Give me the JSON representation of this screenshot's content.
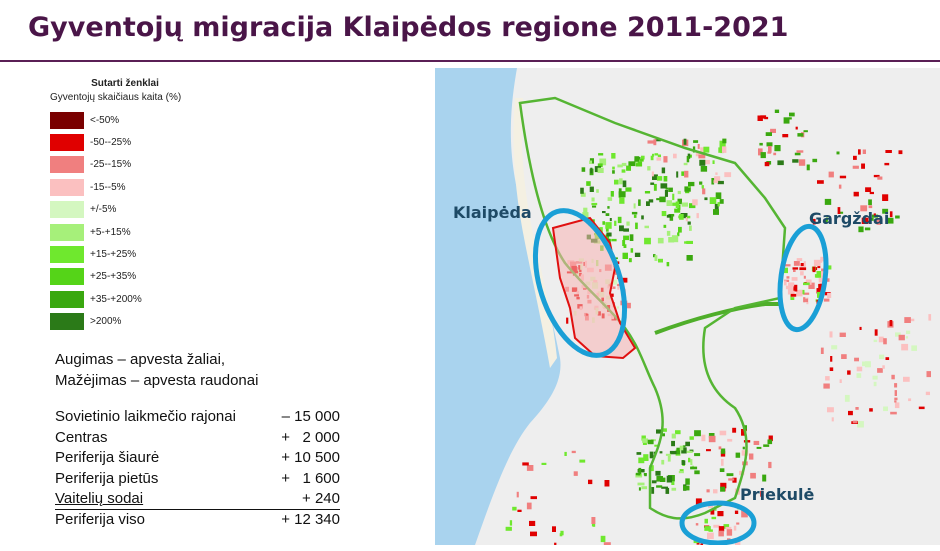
{
  "title": "Gyventojų migracija Klaipėdos regione 2011-2021",
  "legend": {
    "title": "Sutarti ženklai",
    "subtitle": "Gyventojų skaičiaus kaita (%)",
    "items": [
      {
        "label": "<-50%",
        "color": "#7a0000"
      },
      {
        "label": "-50--25%",
        "color": "#e00000"
      },
      {
        "label": "-25--15%",
        "color": "#f07f7f"
      },
      {
        "label": "-15--5%",
        "color": "#fbc0c0"
      },
      {
        "label": "+/-5%",
        "color": "#d4f7c0"
      },
      {
        "label": "+5-+15%",
        "color": "#a6f07a"
      },
      {
        "label": "+15-+25%",
        "color": "#6fe82e"
      },
      {
        "label": "+25-+35%",
        "color": "#55d418"
      },
      {
        "label": "+35-+200%",
        "color": "#3aa80f"
      },
      {
        "label": ">200%",
        "color": "#2b7a18"
      }
    ]
  },
  "note": {
    "line1": "Augimas – apvesta žaliai,",
    "line2": "Mažėjimas – apvesta raudonai"
  },
  "stats": [
    {
      "name": "Sovietinio laikmečio rajonai",
      "value": "– 15 000"
    },
    {
      "name": "Centras",
      "value": "+   2 000"
    },
    {
      "name": "Periferija šiaurė",
      "value": "+ 10 500"
    },
    {
      "name": "Periferija pietūs",
      "value": "+   1 600"
    },
    {
      "name": "Vaitelių sodai",
      "value": "+ 240"
    },
    {
      "name": "Periferija viso",
      "value": "+ 12 340"
    }
  ],
  "map": {
    "labels": {
      "klaipeda": "Klaipėda",
      "gargzdai": "Gargždai",
      "priekule": "Priekulė"
    },
    "colors": {
      "sea": "#a9d3ee",
      "land": "#eeeeee",
      "green_outline": "#55b533",
      "blue_outline": "#1a9fd6",
      "red_outline": "#e01010"
    }
  }
}
